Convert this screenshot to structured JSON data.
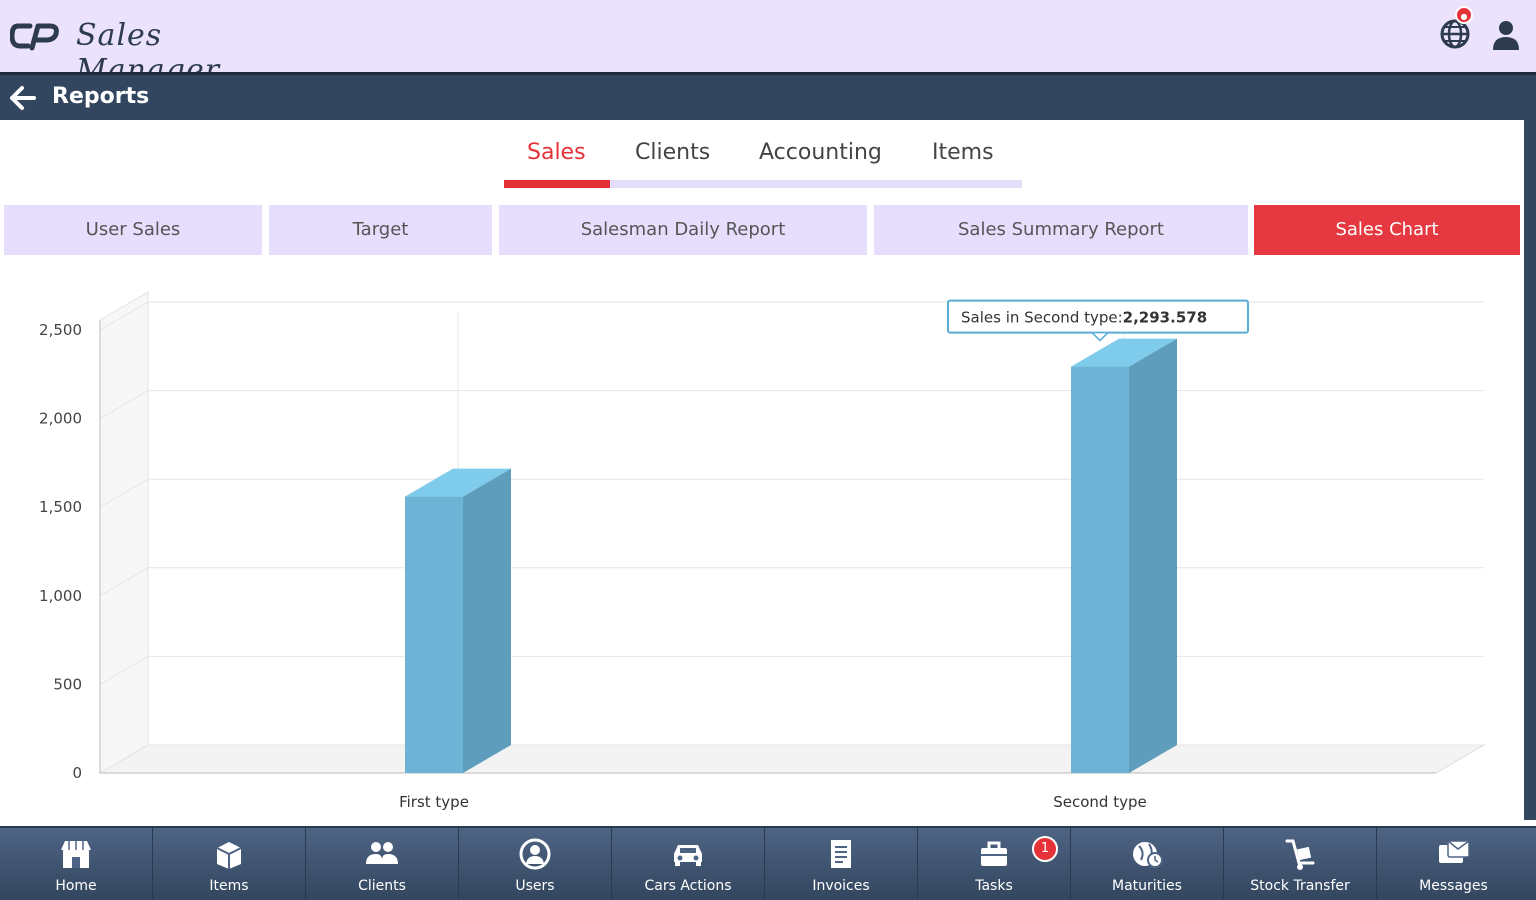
{
  "app": {
    "name": "Sales Manager",
    "logo_mark": "CP"
  },
  "header": {
    "globe_icon": "globe-icon",
    "user_icon": "user-icon"
  },
  "titlebar": {
    "title": "Reports",
    "back_icon": "arrow-left-icon"
  },
  "tabs": [
    {
      "label": "Sales",
      "active": true
    },
    {
      "label": "Clients",
      "active": false
    },
    {
      "label": "Accounting",
      "active": false
    },
    {
      "label": "Items",
      "active": false
    }
  ],
  "subtabs": [
    {
      "label": "User Sales",
      "active": false
    },
    {
      "label": "Target",
      "active": false
    },
    {
      "label": "Salesman Daily Report",
      "active": false
    },
    {
      "label": "Sales Summary Report",
      "active": false
    },
    {
      "label": "Sales Chart",
      "active": true
    }
  ],
  "chart_data": {
    "type": "bar",
    "style": "3d-column",
    "categories": [
      "First type",
      "Second type"
    ],
    "values": [
      1560,
      2293.578
    ],
    "yticks": [
      "0",
      "500",
      "1,000",
      "1,500",
      "2,000",
      "2,500"
    ],
    "ylim": [
      0,
      2500
    ],
    "grid": true,
    "color": "#6cb3d6",
    "tooltip": {
      "label": "Sales in Second type:",
      "value": "2,293.578"
    }
  },
  "bottom_nav": [
    {
      "label": "Home",
      "icon": "store-icon"
    },
    {
      "label": "Items",
      "icon": "box-icon"
    },
    {
      "label": "Clients",
      "icon": "people-icon"
    },
    {
      "label": "Users",
      "icon": "user-circle-icon"
    },
    {
      "label": "Cars Actions",
      "icon": "car-icon"
    },
    {
      "label": "Invoices",
      "icon": "invoice-icon"
    },
    {
      "label": "Tasks",
      "icon": "briefcase-icon",
      "badge": "1"
    },
    {
      "label": "Maturities",
      "icon": "globe-clock-icon"
    },
    {
      "label": "Stock Transfer",
      "icon": "trolley-icon"
    },
    {
      "label": "Messages",
      "icon": "message-icon"
    }
  ],
  "colors": {
    "header_bg": "#ebe3fc",
    "titlebar_bg": "#33465f",
    "accent": "#e53238",
    "bar": "#6cb3d6"
  }
}
